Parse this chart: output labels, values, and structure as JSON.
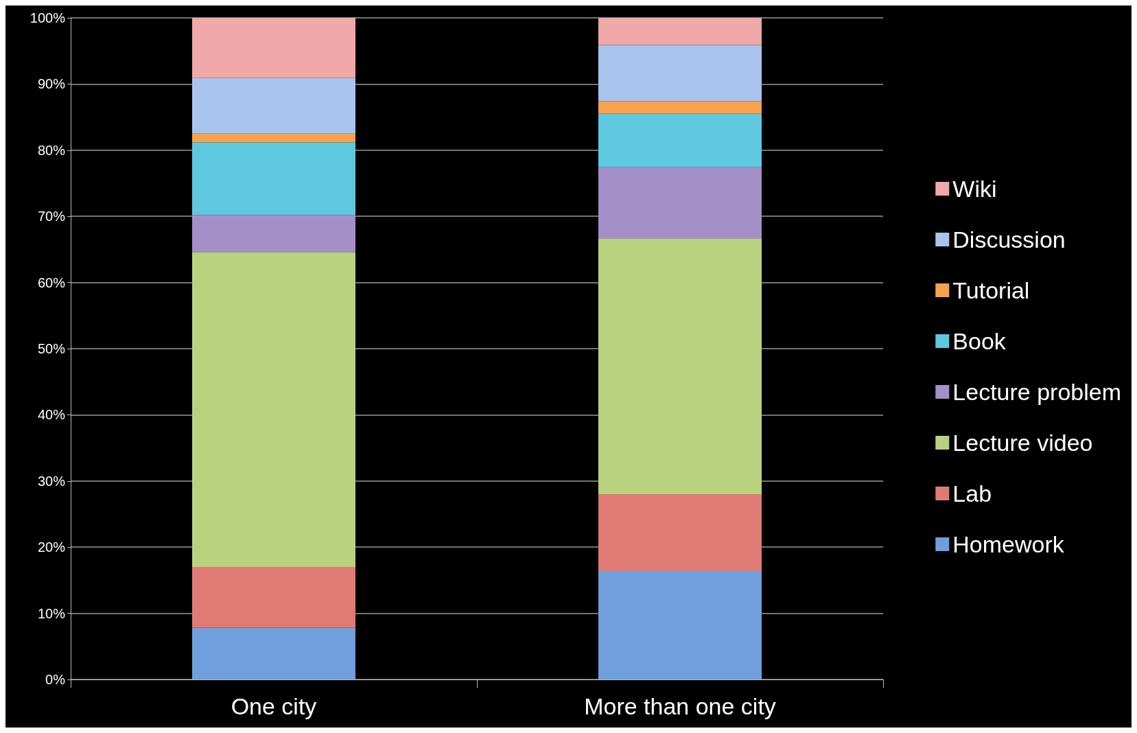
{
  "chart_data": {
    "type": "bar",
    "stacked": true,
    "categories": [
      "One city",
      "More than one city"
    ],
    "series": [
      {
        "name": "Homework",
        "color": "#6f9fdc",
        "values": [
          7.8,
          16.4
        ]
      },
      {
        "name": "Lab",
        "color": "#e07a74",
        "values": [
          9.2,
          11.6
        ]
      },
      {
        "name": "Lecture video",
        "color": "#b8d27e",
        "values": [
          47.6,
          38.6
        ]
      },
      {
        "name": "Lecture problem",
        "color": "#a58fc8",
        "values": [
          5.6,
          10.8
        ]
      },
      {
        "name": "Book",
        "color": "#5ec8e0",
        "values": [
          11.0,
          8.1
        ]
      },
      {
        "name": "Tutorial",
        "color": "#f7a24f",
        "values": [
          1.3,
          1.9
        ]
      },
      {
        "name": "Discussion",
        "color": "#a9c4ee",
        "values": [
          8.4,
          8.5
        ]
      },
      {
        "name": "Wiki",
        "color": "#f0a8a8",
        "values": [
          9.1,
          4.1
        ]
      }
    ],
    "ylim": [
      0,
      100
    ],
    "yticks": [
      {
        "value": 0,
        "label": "0%"
      },
      {
        "value": 10,
        "label": "10%"
      },
      {
        "value": 20,
        "label": "20%"
      },
      {
        "value": 30,
        "label": "30%"
      },
      {
        "value": 40,
        "label": "40%"
      },
      {
        "value": 50,
        "label": "50%"
      },
      {
        "value": 60,
        "label": "60%"
      },
      {
        "value": 70,
        "label": "70%"
      },
      {
        "value": 80,
        "label": "80%"
      },
      {
        "value": 90,
        "label": "90%"
      },
      {
        "value": 100,
        "label": "100%"
      }
    ],
    "grid": "y",
    "legend": "right"
  }
}
